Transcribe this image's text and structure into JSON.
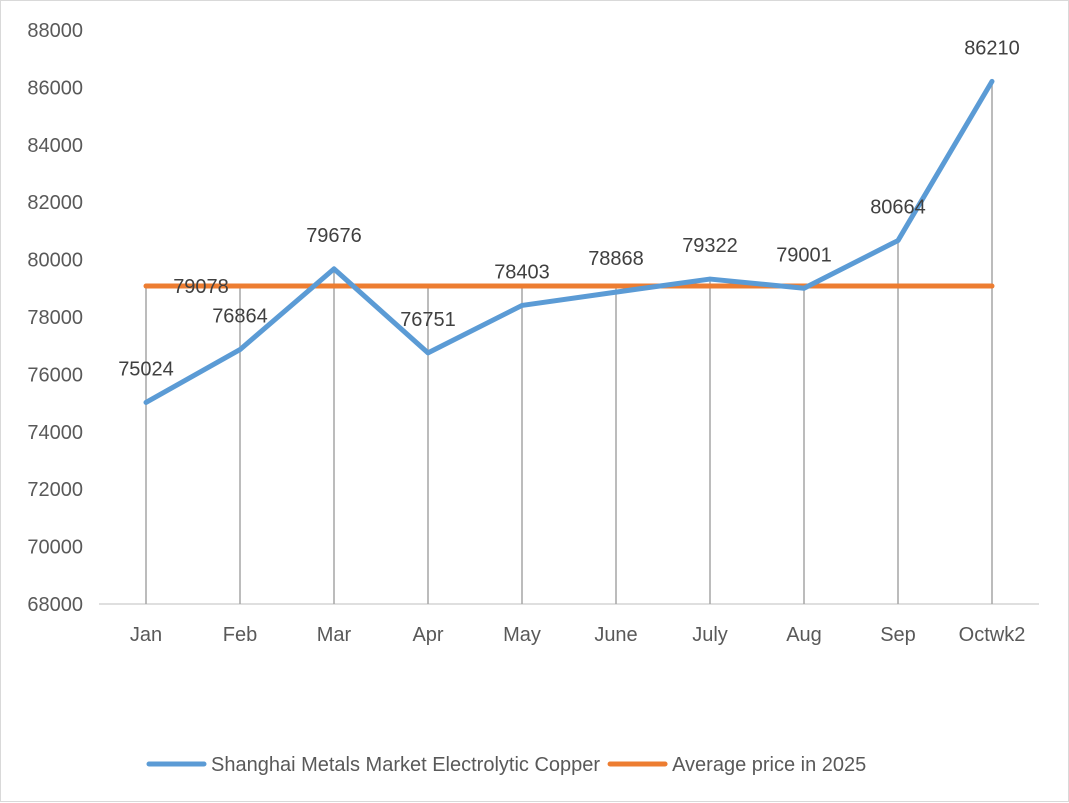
{
  "chart_data": {
    "type": "line",
    "title": "",
    "xlabel": "",
    "ylabel": "",
    "categories": [
      "Jan",
      "Feb",
      "Mar",
      "Apr",
      "May",
      "June",
      "July",
      "Aug",
      "Sep",
      "Octwk2"
    ],
    "ylim": [
      68000,
      88000
    ],
    "yticks": [
      68000,
      70000,
      72000,
      74000,
      76000,
      78000,
      80000,
      82000,
      84000,
      86000,
      88000
    ],
    "grid": "vertical drop lines at each category",
    "legend_position": "bottom",
    "series": [
      {
        "name": "Shanghai Metals Market Electrolytic Copper",
        "color": "#5b9bd5",
        "values": [
          75024,
          76864,
          79676,
          76751,
          78403,
          78868,
          79322,
          79001,
          80664,
          86210
        ],
        "data_labels": [
          "75024",
          "76864",
          "79676",
          "76751",
          "78403",
          "78868",
          "79322",
          "79001",
          "80664",
          "86210"
        ]
      },
      {
        "name": "Average price in 2025",
        "color": "#ed7d31",
        "values": [
          79078,
          79078,
          79078,
          79078,
          79078,
          79078,
          79078,
          79078,
          79078,
          79078
        ],
        "data_labels": [
          "79078"
        ]
      }
    ]
  }
}
